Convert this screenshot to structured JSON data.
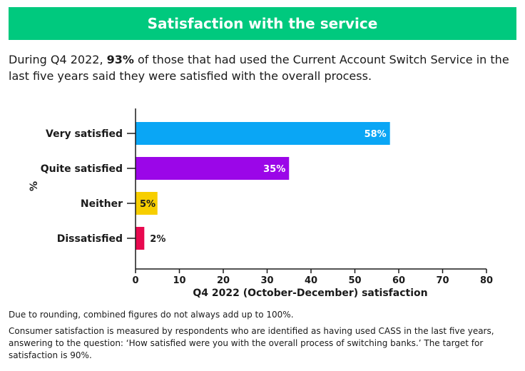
{
  "header": {
    "title": "Satisfaction with the service"
  },
  "intro": {
    "before": "During Q4 2022, ",
    "highlight": "93%",
    "after": " of those that had used the Current Account Switch Service in the last five years said they were satisfied with the overall process."
  },
  "chart_data": {
    "type": "bar",
    "orientation": "horizontal",
    "categories": [
      "Very satisfied",
      "Quite satisfied",
      "Neither",
      "Dissatisfied"
    ],
    "values": [
      58,
      35,
      5,
      2
    ],
    "value_labels": [
      "58%",
      "35%",
      "5%",
      "2%"
    ],
    "colors": [
      "#0aa6f5",
      "#9b06e8",
      "#f7ce00",
      "#e8094f"
    ],
    "label_inside": [
      true,
      true,
      true,
      false
    ],
    "xlabel": "Q4 2022 (October-December) satisfaction",
    "ylabel": "%",
    "xlim": [
      0,
      80
    ],
    "xticks": [
      0,
      10,
      20,
      30,
      40,
      50,
      60,
      70,
      80
    ],
    "grid": false
  },
  "notes": {
    "rounding": "Due to rounding, combined figures do not always add up to 100%.",
    "method": "Consumer satisfaction is measured by respondents who are identified as having used CASS in the last five years, answering to the question: ‘How satisfied were you with the overall process of switching banks.’ The target for satisfaction is 90%."
  }
}
